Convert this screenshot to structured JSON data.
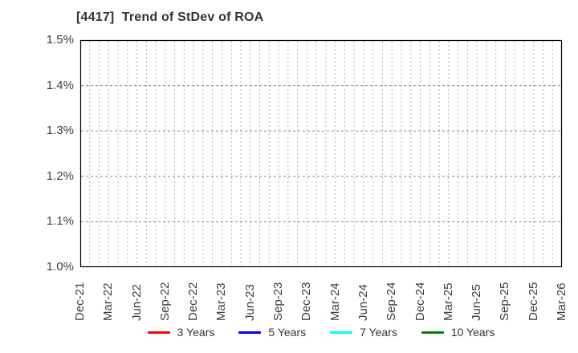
{
  "title": "[4417]  Trend of StDev of ROA",
  "chart_data": {
    "type": "line",
    "title": "[4417]  Trend of StDev of ROA",
    "x_tick_labels": [
      "Dec-21",
      "Mar-22",
      "Jun-22",
      "Sep-22",
      "Dec-22",
      "Mar-23",
      "Jun-23",
      "Sep-23",
      "Dec-23",
      "Mar-24",
      "Jun-24",
      "Sep-24",
      "Dec-24",
      "Mar-25",
      "Jun-25",
      "Sep-25",
      "Dec-25",
      "Mar-26"
    ],
    "x_minor_divisions_per_interval": 3,
    "y_tick_labels": [
      "1.0%",
      "1.1%",
      "1.2%",
      "1.3%",
      "1.4%",
      "1.5%"
    ],
    "ylim": [
      1.0,
      1.5
    ],
    "grid": true,
    "legend_position": "bottom",
    "series": [
      {
        "name": "3 Years",
        "color": "#ff0000",
        "values": []
      },
      {
        "name": "5 Years",
        "color": "#0000ff",
        "values": []
      },
      {
        "name": "7 Years",
        "color": "#00ffff",
        "values": []
      },
      {
        "name": "10 Years",
        "color": "#008000",
        "values": []
      }
    ],
    "colors": {
      "spine": "#000000",
      "grid_vertical": "#b3b3b3",
      "grid_horizontal": "#848484",
      "tick_label": "#3d3d3d",
      "title": "#333333",
      "background": "#ffffff"
    }
  }
}
